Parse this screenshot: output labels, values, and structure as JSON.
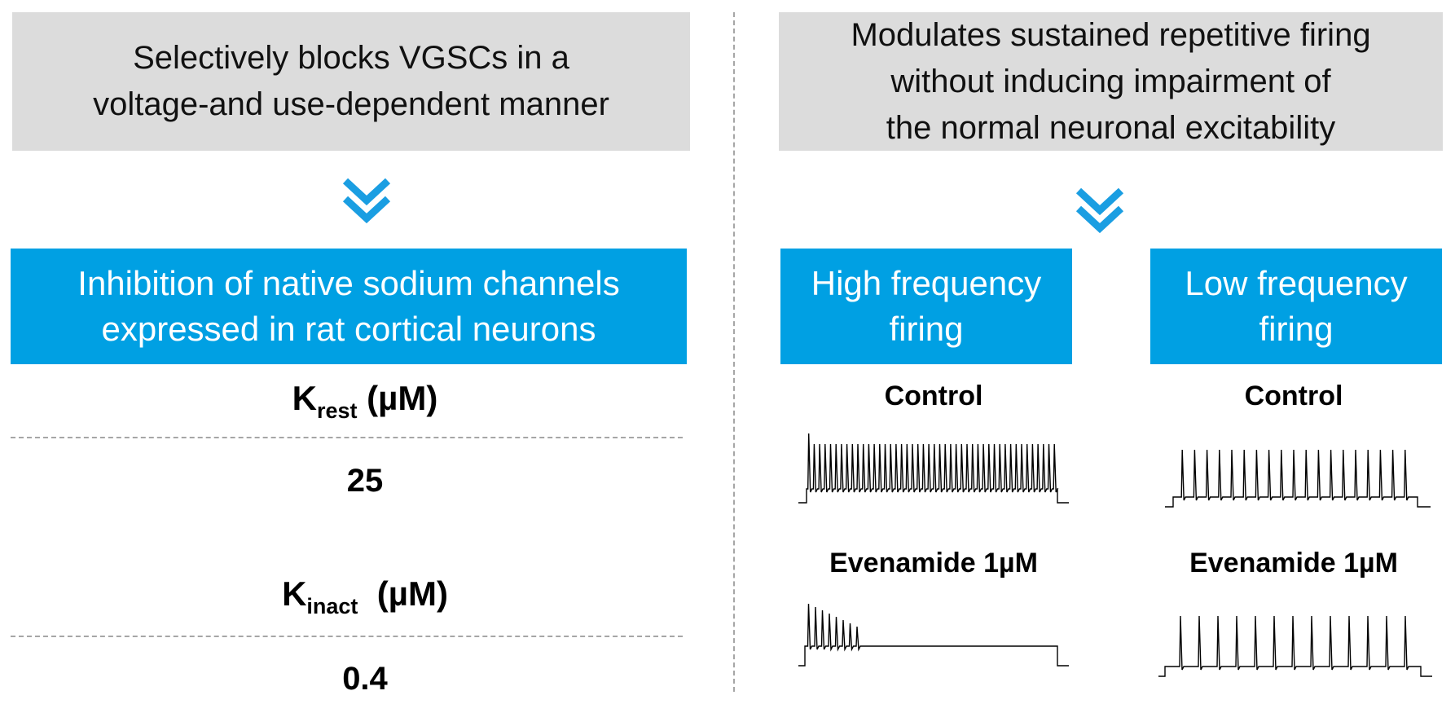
{
  "left": {
    "top_box": {
      "line1": "Selectively  blocks VGSCs  in a",
      "line2": "voltage-and use-dependent manner"
    },
    "main_box": {
      "line1": "Inhibition of native sodium channels",
      "line2": "expressed in rat cortical neurons"
    },
    "k_rest": {
      "symbol": "K",
      "subscript": "rest",
      "unit": " (µM)",
      "value": "25"
    },
    "k_inact": {
      "symbol": "K",
      "subscript": "inact",
      "unit": "  (µM)",
      "value": "0.4"
    }
  },
  "right": {
    "top_box": {
      "line1": "Modulates sustained repetitive firing",
      "line2": "without inducing impairment of",
      "line3": "the normal neuronal excitability"
    },
    "high_box": {
      "line1": "High frequency",
      "line2": "firing"
    },
    "low_box": {
      "line1": "Low frequency",
      "line2": "firing"
    },
    "high_control_label": "Control",
    "high_drug_label": "Evenamide 1µM",
    "low_control_label": "Control",
    "low_drug_label": "Evenamide 1µM"
  },
  "colors": {
    "blue": "#00a0e3",
    "gray": "#dcdcdc",
    "chevron": "#1a9ee2",
    "dash": "#a6a6a6"
  },
  "icons": {
    "chevron": "double-chevron-down-icon"
  }
}
